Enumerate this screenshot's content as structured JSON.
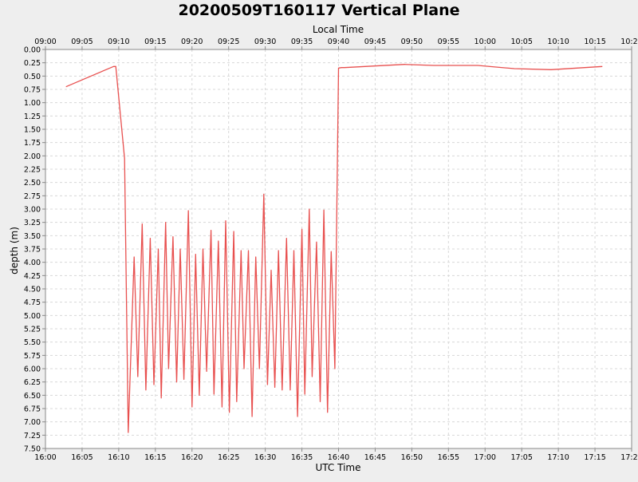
{
  "chart_data": {
    "type": "line",
    "title": "20200509T160117 Vertical Plane",
    "xlabel": "UTC Time",
    "x2label": "Local Time",
    "ylabel": "depth (m)",
    "x_unit": "minutes",
    "xlim": [
      0,
      80
    ],
    "ylim": [
      0,
      7.5
    ],
    "y_inverted": true,
    "grid": true,
    "x_ticks": [
      "16:00",
      "16:05",
      "16:10",
      "16:15",
      "16:20",
      "16:25",
      "16:30",
      "16:35",
      "16:40",
      "16:45",
      "16:50",
      "16:55",
      "17:00",
      "17:05",
      "17:10",
      "17:15",
      "17:20"
    ],
    "x2_ticks": [
      "09:00",
      "09:05",
      "09:10",
      "09:15",
      "09:20",
      "09:25",
      "09:30",
      "09:35",
      "09:40",
      "09:45",
      "09:50",
      "09:55",
      "10:00",
      "10:05",
      "10:10",
      "10:15",
      "10:20"
    ],
    "y_ticks": [
      "0.00",
      "0.25",
      "0.50",
      "0.75",
      "1.00",
      "1.25",
      "1.50",
      "1.75",
      "2.00",
      "2.25",
      "2.50",
      "2.75",
      "3.00",
      "3.25",
      "3.50",
      "3.75",
      "4.00",
      "4.25",
      "4.50",
      "4.75",
      "5.00",
      "5.25",
      "5.50",
      "5.75",
      "6.00",
      "6.25",
      "6.50",
      "6.75",
      "7.00",
      "7.25",
      "7.50"
    ],
    "colors": {
      "series": "#e8504f",
      "background": "#ffffff",
      "frame": "#eeeeee"
    },
    "series": [
      {
        "x": [
          2.8,
          9.3,
          9.6,
          10.8,
          11.3,
          12.1,
          12.6,
          13.2,
          13.7,
          14.3,
          14.8,
          15.4,
          15.8,
          16.4,
          16.8,
          17.4,
          17.9,
          18.4,
          18.9,
          19.5,
          20.0,
          20.5,
          21.0,
          21.5,
          22.0,
          22.6,
          23.0,
          23.6,
          24.1,
          24.6,
          25.1,
          25.7,
          26.1,
          26.7,
          27.1,
          27.7,
          28.2,
          28.7,
          29.2,
          29.8,
          30.3,
          30.8,
          31.3,
          31.8,
          32.3,
          32.9,
          33.4,
          33.9,
          34.4,
          35.0,
          35.4,
          36.0,
          36.4,
          37.0,
          37.5,
          38.0,
          38.5,
          39.0,
          39.5,
          40.0,
          40.4,
          40.8,
          49.0,
          53.0,
          59.0,
          64.0,
          69.0,
          76.0
        ],
        "y": [
          0.7,
          0.32,
          0.32,
          2.05,
          7.2,
          3.9,
          6.15,
          3.28,
          6.4,
          3.55,
          6.3,
          3.75,
          6.55,
          3.25,
          6.0,
          3.52,
          6.25,
          3.75,
          6.2,
          3.03,
          6.72,
          3.85,
          6.5,
          3.75,
          6.05,
          3.4,
          6.48,
          3.6,
          6.72,
          3.22,
          6.82,
          3.42,
          6.62,
          3.78,
          6.0,
          3.78,
          6.9,
          3.9,
          6.0,
          2.72,
          6.3,
          4.15,
          6.35,
          3.78,
          6.4,
          3.55,
          6.4,
          3.78,
          6.9,
          3.38,
          6.48,
          3.0,
          6.15,
          3.62,
          6.62,
          3.02,
          6.82,
          3.8,
          6.0,
          0.35,
          0.34,
          0.34,
          0.28,
          0.3,
          0.3,
          0.36,
          0.38,
          0.32
        ]
      }
    ]
  }
}
